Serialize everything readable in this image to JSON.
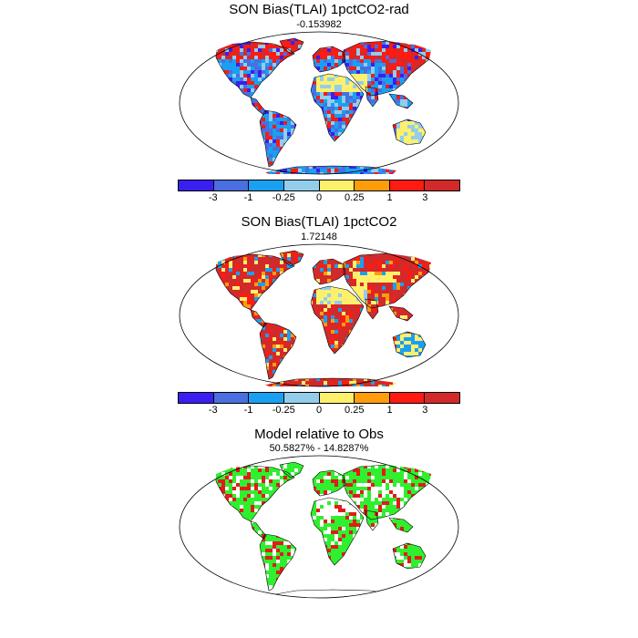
{
  "panels": [
    {
      "title": "SON Bias(TLAI) 1pctCO2-rad",
      "value": "-0.153982",
      "scheme": "bias_rad"
    },
    {
      "title": "SON Bias(TLAI) 1pctCO2",
      "value": "1.72148",
      "scheme": "bias_co2"
    },
    {
      "title": "Model relative to Obs",
      "value": "50.5827% - 14.8287%",
      "scheme": "relative"
    }
  ],
  "colorbar": {
    "colors": [
      "#3a1ff0",
      "#4a6fe0",
      "#1aa0f2",
      "#92cdec",
      "#fff06c",
      "#ff9c0c",
      "#ff1a12",
      "#d22a2a"
    ],
    "tick_labels": [
      "-3",
      "-1",
      "-0.25",
      "0",
      "0.25",
      "1",
      "3"
    ]
  },
  "relative_colors": {
    "land": "#2ef02e",
    "worse": "#e41a1a",
    "other": "#ffffff"
  }
}
